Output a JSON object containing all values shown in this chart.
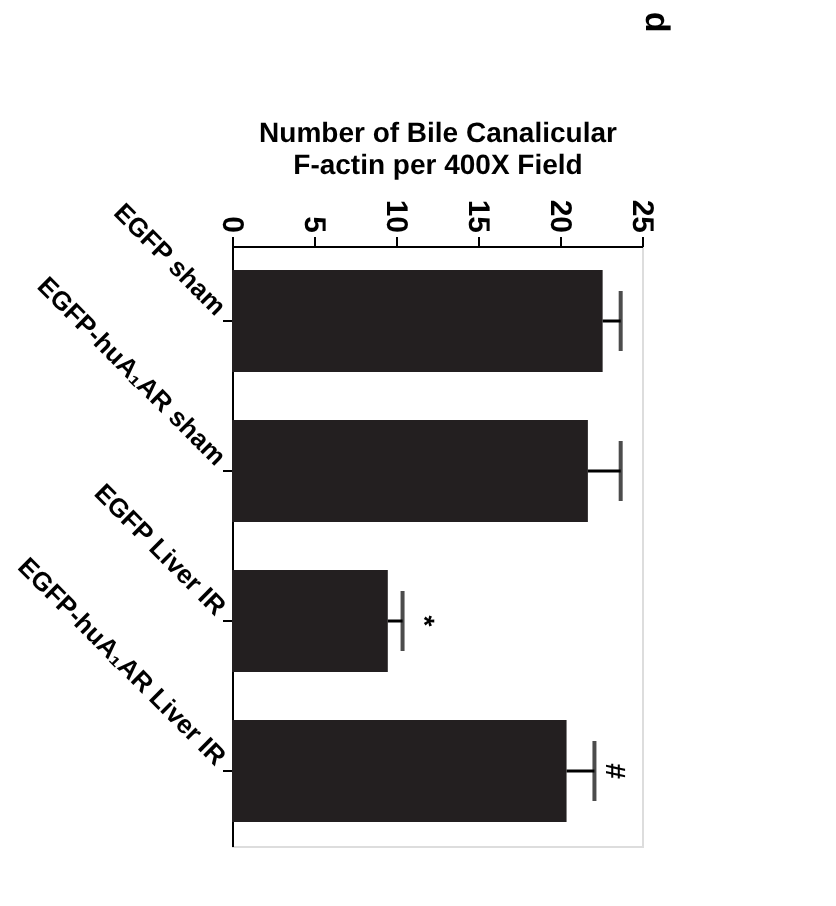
{
  "chart_data": {
    "type": "bar",
    "orientation": "horizontal",
    "xlabel": "Number of Bile Canalicular\nF-actin per 400X Field",
    "categories": [
      "EGFP sham",
      "EGFP-huA₁AR sham",
      "EGFP Liver IR",
      "EGFP-huA₁AR Liver IR"
    ],
    "values": [
      22.6,
      21.7,
      9.5,
      20.4
    ],
    "color": "#231f20",
    "errors": [
      [
        22.6,
        23.7
      ],
      [
        21.7,
        23.7
      ],
      [
        9.5,
        10.4
      ],
      [
        20.4,
        22.1
      ]
    ],
    "xlim": [
      0,
      25
    ],
    "xticks": [
      0,
      5,
      10,
      15,
      20,
      25
    ],
    "grid": false,
    "annotations": [
      "d",
      {
        "text": "*",
        "x": 9.5,
        "y": "EGFP Liver IR"
      },
      {
        "text": "#",
        "x": 20.4,
        "y": "EGFP-huA₁AR Liver IR"
      }
    ]
  }
}
